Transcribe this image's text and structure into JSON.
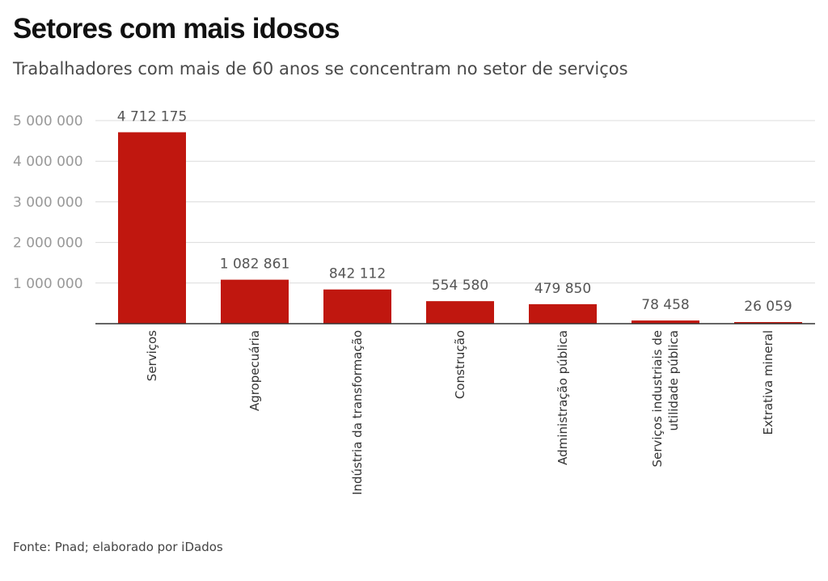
{
  "header": {
    "title": "Setores com mais idosos",
    "subtitle": "Trabalhadores com mais de 60 anos se concentram no setor de serviços"
  },
  "footer": {
    "source": "Fonte: Pnad; elaborado por iDados"
  },
  "chart_data": {
    "type": "bar",
    "title": "Setores com mais idosos",
    "subtitle": "Trabalhadores com mais de 60 anos se concentram no setor de serviços",
    "xlabel": "",
    "ylabel": "",
    "ylim": [
      0,
      5000000
    ],
    "y_ticks": [
      1000000,
      2000000,
      3000000,
      4000000,
      5000000
    ],
    "y_tick_labels": [
      "1 000 000",
      "2 000 000",
      "3 000 000",
      "4 000 000",
      "5 000 000"
    ],
    "grid": true,
    "categories": [
      [
        "Serviços"
      ],
      [
        "Agropecuária"
      ],
      [
        "Indústria da transformação"
      ],
      [
        "Construção"
      ],
      [
        "Administração pública"
      ],
      [
        "Serviços industriais de",
        "utilidade pública"
      ],
      [
        "Extrativa mineral"
      ]
    ],
    "values": [
      4712175,
      1082861,
      842112,
      554580,
      479850,
      78458,
      26059
    ],
    "value_labels": [
      "4 712 175",
      "1 082 861",
      "842 112",
      "554 580",
      "479 850",
      "78 458",
      "26 059"
    ],
    "bar_color": "#c0170f",
    "source": "Fonte: Pnad; elaborado por iDados"
  }
}
